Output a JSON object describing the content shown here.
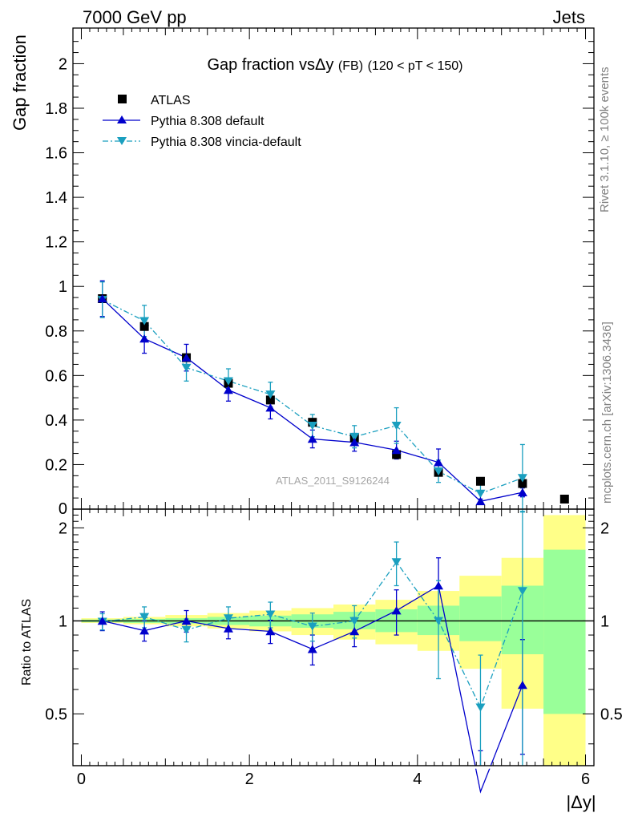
{
  "header": {
    "left": "7000 GeV pp",
    "right": "Jets"
  },
  "side_labels": {
    "rivet": "Rivet 3.1.10, ≥ 100k events",
    "mcplots": "mcplots.cern.ch [arXiv:1306.3436]"
  },
  "colors": {
    "atlas": "#000000",
    "pythia_default": "#0000cc",
    "vincia": "#1a9fbf",
    "band_green": "#99ff99",
    "band_yellow": "#ffff88"
  },
  "chart_data": [
    {
      "type": "scatter",
      "title_main": "Gap fraction vsΔy",
      "title_fb": "(FB)",
      "title_range": "(120 < pT < 150)",
      "ylabel": "Gap fraction",
      "watermark": "ATLAS_2011_S9126244",
      "xlim": [
        -0.1,
        6.1
      ],
      "ylim": [
        0,
        2.16
      ],
      "yticks": [
        0.2,
        0.4,
        0.6,
        0.8,
        1,
        1.2,
        1.4,
        1.6,
        1.8,
        2
      ],
      "ytick_labels": [
        "0.2",
        "0.4",
        "0.6",
        "0.8",
        "1",
        "1.2",
        "1.4",
        "1.6",
        "1.8",
        "2"
      ],
      "bottom_tick_label": "0",
      "x_bin_edges": [
        0,
        0.5,
        1,
        1.5,
        2,
        2.5,
        3,
        3.5,
        4,
        4.5,
        5,
        5.5,
        6
      ],
      "legend": [
        "ATLAS",
        "Pythia 8.308 default",
        "Pythia 8.308 vincia-default"
      ],
      "series": [
        {
          "name": "ATLAS",
          "x": [
            0.25,
            0.75,
            1.25,
            1.75,
            2.25,
            2.75,
            3.25,
            3.75,
            4.25,
            4.75,
            5.25,
            5.75
          ],
          "y": [
            0.945,
            0.82,
            0.68,
            0.565,
            0.49,
            0.39,
            0.32,
            0.245,
            0.165,
            0.125,
            0.115,
            0.045
          ],
          "err": [
            0.01,
            0.01,
            0.01,
            0.01,
            0.01,
            0.01,
            0.01,
            0.01,
            0.01,
            0.01,
            0.01,
            0.01
          ]
        },
        {
          "name": "Pythia 8.308 default",
          "x": [
            0.25,
            0.75,
            1.25,
            1.75,
            2.25,
            2.75,
            3.25,
            3.75,
            4.25,
            4.75,
            5.25
          ],
          "y": [
            0.945,
            0.765,
            0.68,
            0.535,
            0.455,
            0.315,
            0.3,
            0.265,
            0.21,
            0.035,
            0.075
          ],
          "err": [
            0.08,
            0.065,
            0.06,
            0.05,
            0.05,
            0.04,
            0.04,
            0.04,
            0.06,
            0.01,
            0.02
          ]
        },
        {
          "name": "Pythia 8.308 vincia-default",
          "x": [
            0.25,
            0.75,
            1.25,
            1.75,
            2.25,
            2.75,
            3.25,
            3.75,
            4.25,
            4.75,
            5.25
          ],
          "y": [
            0.94,
            0.845,
            0.635,
            0.575,
            0.515,
            0.375,
            0.325,
            0.375,
            0.17,
            0.07,
            0.14
          ],
          "err": [
            0.08,
            0.07,
            0.06,
            0.055,
            0.055,
            0.05,
            0.05,
            0.08,
            0.05,
            0.04,
            0.15
          ]
        }
      ]
    },
    {
      "type": "scatter",
      "ylabel": "Ratio to ATLAS",
      "xlabel": "|Δy|",
      "xlim": [
        -0.1,
        6.1
      ],
      "ylim": [
        0.34,
        2.3
      ],
      "log_scale_y": true,
      "yticks": [
        0.5,
        1,
        2
      ],
      "ytick_labels": [
        "0.5",
        "1",
        "2"
      ],
      "xticks": [
        0,
        2,
        4,
        6
      ],
      "xtick_labels": [
        "0",
        "2",
        "4",
        "6"
      ],
      "bands": {
        "x_bin_edges": [
          0,
          0.5,
          1,
          1.5,
          2,
          2.5,
          3,
          3.5,
          4,
          4.5,
          5,
          5.5,
          6
        ],
        "green_low": [
          0.99,
          0.985,
          0.98,
          0.97,
          0.96,
          0.95,
          0.94,
          0.92,
          0.9,
          0.86,
          0.78,
          0.5
        ],
        "green_high": [
          1.01,
          1.015,
          1.02,
          1.03,
          1.04,
          1.05,
          1.07,
          1.09,
          1.12,
          1.2,
          1.3,
          1.7
        ],
        "yellow_low": [
          0.985,
          0.975,
          0.96,
          0.945,
          0.925,
          0.9,
          0.87,
          0.84,
          0.8,
          0.7,
          0.52,
          0.3
        ],
        "yellow_high": [
          1.02,
          1.03,
          1.045,
          1.06,
          1.08,
          1.1,
          1.13,
          1.17,
          1.25,
          1.4,
          1.6,
          2.2
        ]
      },
      "series": [
        {
          "name": "Pythia 8.308 default",
          "x": [
            0.25,
            0.75,
            1.25,
            1.75,
            2.25,
            2.75,
            3.25,
            3.75,
            4.25,
            4.75,
            5.25
          ],
          "y": [
            1.0,
            0.93,
            1.0,
            0.945,
            0.925,
            0.81,
            0.925,
            1.08,
            1.3,
            0.28,
            0.62
          ],
          "err": [
            0.07,
            0.07,
            0.08,
            0.07,
            0.08,
            0.09,
            0.1,
            0.18,
            0.3,
            0.1,
            0.25
          ]
        },
        {
          "name": "Pythia 8.308 vincia-default",
          "x": [
            0.25,
            0.75,
            1.25,
            1.75,
            2.25,
            2.75,
            3.25,
            3.75,
            4.25,
            4.75,
            5.25
          ],
          "y": [
            0.995,
            1.03,
            0.935,
            1.02,
            1.05,
            0.96,
            1.0,
            1.55,
            1.0,
            0.525,
            1.25
          ],
          "err": [
            0.06,
            0.08,
            0.08,
            0.09,
            0.1,
            0.1,
            0.12,
            0.25,
            0.35,
            0.25,
            1.0
          ]
        }
      ]
    }
  ]
}
